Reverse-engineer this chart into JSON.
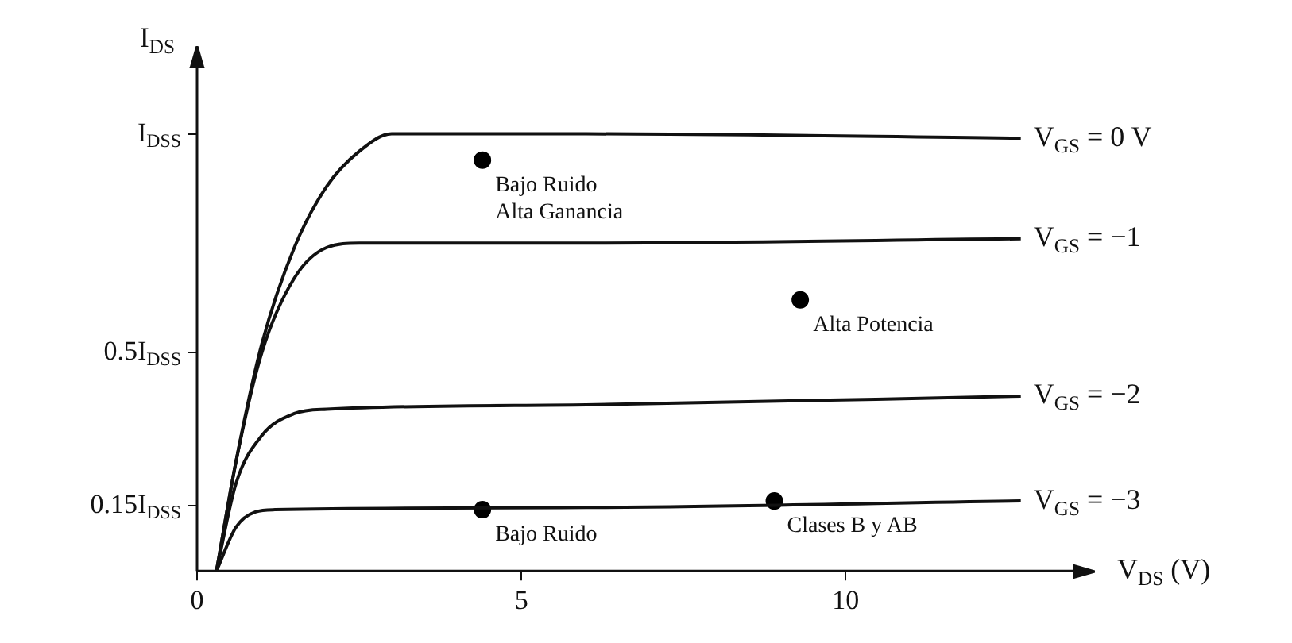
{
  "chart_data": {
    "type": "line",
    "xlabel": "V$_{DS}$ (V)",
    "ylabel": "I$_{DS}$",
    "xlim": [
      0,
      13.5
    ],
    "ylim": [
      0,
      1.15
    ],
    "xticks": [
      0,
      5,
      10
    ],
    "yticks": [
      {
        "value": 0.15,
        "label": "0.15I$_{DSS}$"
      },
      {
        "value": 0.5,
        "label": "0.5I$_{DSS}$"
      },
      {
        "value": 1,
        "label": "I$_{DSS}$"
      }
    ],
    "marker": "none",
    "line_style": "solid",
    "series": [
      {
        "name": "V$_{GS}$ = 0 V",
        "color": "#111111",
        "x": [
          0.3,
          0.6,
          1,
          1.5,
          2,
          2.5,
          3,
          6,
          12.7
        ],
        "values": [
          0,
          0.25,
          0.52,
          0.74,
          0.88,
          0.96,
          1,
          1,
          0.99
        ]
      },
      {
        "name": "V$_{GS}$ = −1",
        "color": "#111111",
        "x": [
          0.3,
          0.6,
          1,
          1.5,
          2,
          2.5,
          6,
          12.7
        ],
        "values": [
          0,
          0.25,
          0.5,
          0.67,
          0.74,
          0.75,
          0.75,
          0.76
        ]
      },
      {
        "name": "V$_{GS}$ = −2",
        "color": "#111111",
        "x": [
          0.3,
          0.6,
          1,
          1.5,
          2,
          6,
          12.7
        ],
        "values": [
          0,
          0.2,
          0.31,
          0.36,
          0.37,
          0.38,
          0.4
        ]
      },
      {
        "name": "V$_{GS}$ = −3",
        "color": "#111111",
        "x": [
          0.3,
          0.6,
          0.9,
          1.2,
          6,
          12.7
        ],
        "values": [
          0,
          0.1,
          0.135,
          0.14,
          0.145,
          0.16
        ]
      },
      {
        "type": "scatter",
        "marker": "circle",
        "color": "#000000",
        "x": [
          4.4,
          9.3,
          4.4,
          8.9
        ],
        "values": [
          0.94,
          0.62,
          0.14,
          0.16
        ]
      }
    ],
    "annotations": [
      {
        "text": "Bajo Ruido\nAlta Ganancia",
        "x": 4.4,
        "y": 0.94
      },
      {
        "text": "Alta Potencia",
        "x": 9.3,
        "y": 0.62
      },
      {
        "text": "Bajo Ruido",
        "x": 4.4,
        "y": 0.14
      },
      {
        "text": "Clases B y AB",
        "x": 8.9,
        "y": 0.16
      }
    ]
  }
}
